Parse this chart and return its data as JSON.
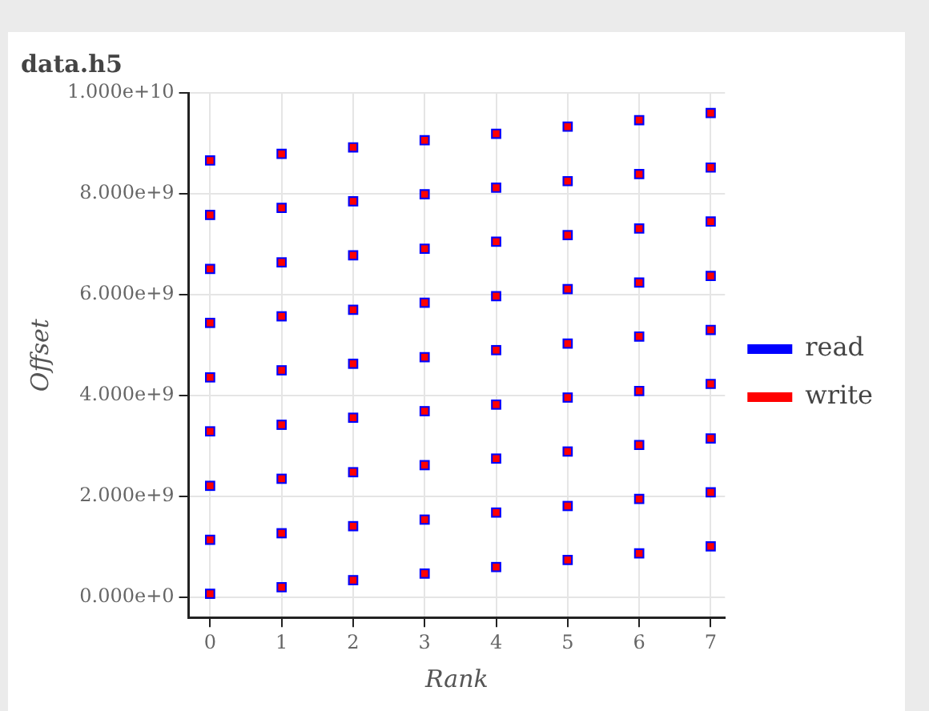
{
  "chart_data": {
    "type": "scatter",
    "title": "data.h5",
    "xlabel": "Rank",
    "ylabel": "Offset",
    "xlim": [
      -0.3,
      7.2
    ],
    "xticks": [
      0,
      1,
      2,
      3,
      4,
      5,
      6,
      7
    ],
    "ylim": [
      -400000000.0,
      10000000000.0
    ],
    "yticks": [
      {
        "value": 0,
        "label": "0.000e+0"
      },
      {
        "value": 2000000000.0,
        "label": "2.000e+9"
      },
      {
        "value": 4000000000.0,
        "label": "4.000e+9"
      },
      {
        "value": 6000000000.0,
        "label": "6.000e+9"
      },
      {
        "value": 8000000000.0,
        "label": "8.000e+9"
      },
      {
        "value": 10000000000.0,
        "label": "1.000e+10"
      }
    ],
    "grid": true,
    "legend": "right",
    "marker": "square",
    "series": [
      {
        "name": "read",
        "color": "#0000ff",
        "x": [
          0,
          0,
          0,
          0,
          0,
          0,
          0,
          0,
          0,
          1,
          1,
          1,
          1,
          1,
          1,
          1,
          1,
          1,
          2,
          2,
          2,
          2,
          2,
          2,
          2,
          2,
          2,
          3,
          3,
          3,
          3,
          3,
          3,
          3,
          3,
          3,
          4,
          4,
          4,
          4,
          4,
          4,
          4,
          4,
          4,
          5,
          5,
          5,
          5,
          5,
          5,
          5,
          5,
          5,
          6,
          6,
          6,
          6,
          6,
          6,
          6,
          6,
          6,
          7,
          7,
          7,
          7,
          7,
          7,
          7,
          7,
          7
        ],
        "values": [
          70000000.0,
          1140000000.0,
          2210000000.0,
          3290000000.0,
          4360000000.0,
          5440000000.0,
          6510000000.0,
          7580000000.0,
          8660000000.0,
          200000000.0,
          1270000000.0,
          2350000000.0,
          3420000000.0,
          4500000000.0,
          5570000000.0,
          6640000000.0,
          7720000000.0,
          8790000000.0,
          340000000.0,
          1410000000.0,
          2480000000.0,
          3560000000.0,
          4630000000.0,
          5700000000.0,
          6780000000.0,
          7850000000.0,
          8920000000.0,
          470000000.0,
          1540000000.0,
          2620000000.0,
          3690000000.0,
          4760000000.0,
          5840000000.0,
          6910000000.0,
          7990000000.0,
          9060000000.0,
          600000000.0,
          1680000000.0,
          2750000000.0,
          3820000000.0,
          4900000000.0,
          5970000000.0,
          7050000000.0,
          8120000000.0,
          9190000000.0,
          740000000.0,
          1810000000.0,
          2890000000.0,
          3960000000.0,
          5030000000.0,
          6110000000.0,
          7180000000.0,
          8250000000.0,
          9330000000.0,
          870000000.0,
          1950000000.0,
          3020000000.0,
          4090000000.0,
          5170000000.0,
          6240000000.0,
          7310000000.0,
          8390000000.0,
          9460000000.0,
          1010000000.0,
          2080000000.0,
          3150000000.0,
          4230000000.0,
          5300000000.0,
          6370000000.0,
          7450000000.0,
          8520000000.0,
          9600000000.0
        ]
      },
      {
        "name": "write",
        "color": "#ff0000",
        "x": [
          0,
          0,
          0,
          0,
          0,
          0,
          0,
          0,
          0,
          1,
          1,
          1,
          1,
          1,
          1,
          1,
          1,
          1,
          2,
          2,
          2,
          2,
          2,
          2,
          2,
          2,
          2,
          3,
          3,
          3,
          3,
          3,
          3,
          3,
          3,
          3,
          4,
          4,
          4,
          4,
          4,
          4,
          4,
          4,
          4,
          5,
          5,
          5,
          5,
          5,
          5,
          5,
          5,
          5,
          6,
          6,
          6,
          6,
          6,
          6,
          6,
          6,
          6,
          7,
          7,
          7,
          7,
          7,
          7,
          7,
          7,
          7
        ],
        "values": [
          70000000.0,
          1140000000.0,
          2210000000.0,
          3290000000.0,
          4360000000.0,
          5440000000.0,
          6510000000.0,
          7580000000.0,
          8660000000.0,
          200000000.0,
          1270000000.0,
          2350000000.0,
          3420000000.0,
          4500000000.0,
          5570000000.0,
          6640000000.0,
          7720000000.0,
          8790000000.0,
          340000000.0,
          1410000000.0,
          2480000000.0,
          3560000000.0,
          4630000000.0,
          5700000000.0,
          6780000000.0,
          7850000000.0,
          8920000000.0,
          470000000.0,
          1540000000.0,
          2620000000.0,
          3690000000.0,
          4760000000.0,
          5840000000.0,
          6910000000.0,
          7990000000.0,
          9060000000.0,
          600000000.0,
          1680000000.0,
          2750000000.0,
          3820000000.0,
          4900000000.0,
          5970000000.0,
          7050000000.0,
          8120000000.0,
          9190000000.0,
          740000000.0,
          1810000000.0,
          2890000000.0,
          3960000000.0,
          5030000000.0,
          6110000000.0,
          7180000000.0,
          8250000000.0,
          9330000000.0,
          870000000.0,
          1950000000.0,
          3020000000.0,
          4090000000.0,
          5170000000.0,
          6240000000.0,
          7310000000.0,
          8390000000.0,
          9460000000.0,
          1010000000.0,
          2080000000.0,
          3150000000.0,
          4230000000.0,
          5300000000.0,
          6370000000.0,
          7450000000.0,
          8520000000.0,
          9600000000.0
        ]
      }
    ]
  }
}
